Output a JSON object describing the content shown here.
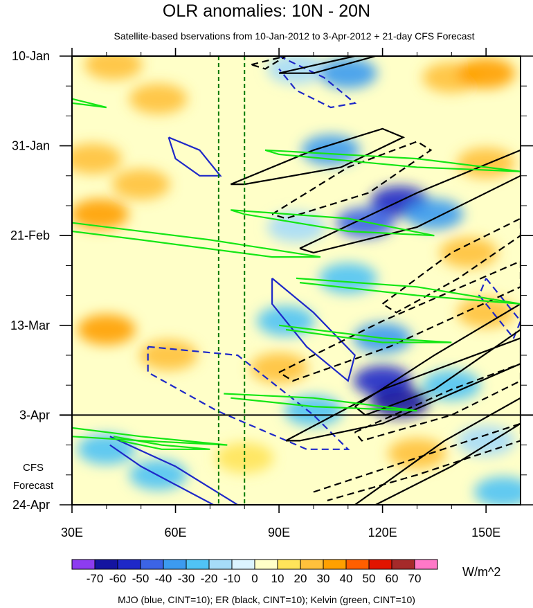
{
  "chart_data": {
    "type": "heatmap",
    "title": "OLR anomalies: 10N - 20N",
    "subtitle": "Satellite-based bservations from 10-Jan-2012 to 3-Apr-2012 + 21-day CFS Forecast",
    "footer": "MJO (blue, CINT=10); ER (black, CINT=10); Kelvin (green, CINT=10)",
    "units": "W/m^2",
    "forecast_label": [
      "CFS",
      "Forecast"
    ],
    "x_axis": {
      "range_deg_east": [
        30,
        160
      ],
      "ticks": [
        30,
        60,
        90,
        120,
        150
      ],
      "tick_labels": [
        "30E",
        "60E",
        "90E",
        "120E",
        "150E"
      ]
    },
    "y_axis": {
      "range_days_from_10_jan": [
        0,
        105
      ],
      "ticks": [
        0,
        21,
        42,
        63,
        84,
        105
      ],
      "tick_labels": [
        "10-Jan",
        "31-Jan",
        "21-Feb",
        "13-Mar",
        "3-Apr",
        "24-Apr"
      ],
      "observation_end_day": 84
    },
    "colorbar": {
      "levels": [
        -70,
        -60,
        -50,
        -40,
        -30,
        -20,
        -10,
        0,
        10,
        20,
        30,
        40,
        50,
        60,
        70
      ],
      "level_labels": [
        "-70",
        "-60",
        "-50",
        "-40",
        "-30",
        "-20",
        "-10",
        "0",
        "10",
        "20",
        "30",
        "40",
        "50",
        "60",
        "70"
      ],
      "colors": [
        "#8d3cf0",
        "#1414a0",
        "#1e28c8",
        "#3c64e6",
        "#3c9bf0",
        "#50c3f5",
        "#a6dcf8",
        "#dcf4ff",
        "#ffffc8",
        "#ffe45a",
        "#ffc13c",
        "#ffa000",
        "#ff5f00",
        "#e11400",
        "#a52a2a",
        "#ff78c8"
      ]
    },
    "reference_lines": [
      {
        "lon": 72.5,
        "style": "dashed",
        "color": "#007800"
      },
      {
        "lon": 80,
        "style": "dashed",
        "color": "#007800"
      }
    ],
    "anomaly_cells": [
      {
        "lon": 42,
        "day": 2,
        "level": 20
      },
      {
        "lon": 55,
        "day": 10,
        "level": 20
      },
      {
        "lon": 95,
        "day": 3,
        "level": -20
      },
      {
        "lon": 110,
        "day": 4,
        "level": -40
      },
      {
        "lon": 140,
        "day": 5,
        "level": 20
      },
      {
        "lon": 150,
        "day": 4,
        "level": 30
      },
      {
        "lon": 36,
        "day": 24,
        "level": 20
      },
      {
        "lon": 50,
        "day": 30,
        "level": 20
      },
      {
        "lon": 38,
        "day": 37,
        "level": 30
      },
      {
        "lon": 105,
        "day": 22,
        "level": -40
      },
      {
        "lon": 125,
        "day": 34,
        "level": -60
      },
      {
        "lon": 115,
        "day": 39,
        "level": -50
      },
      {
        "lon": 135,
        "day": 37,
        "level": -40
      },
      {
        "lon": 95,
        "day": 40,
        "level": -20
      },
      {
        "lon": 150,
        "day": 25,
        "level": 20
      },
      {
        "lon": 145,
        "day": 46,
        "level": 20
      },
      {
        "lon": 110,
        "day": 52,
        "level": -30
      },
      {
        "lon": 92,
        "day": 62,
        "level": -30
      },
      {
        "lon": 120,
        "day": 66,
        "level": -40
      },
      {
        "lon": 40,
        "day": 64,
        "level": 30
      },
      {
        "lon": 58,
        "day": 70,
        "level": 20
      },
      {
        "lon": 150,
        "day": 60,
        "level": 20
      },
      {
        "lon": 120,
        "day": 76,
        "level": -60
      },
      {
        "lon": 125,
        "day": 81,
        "level": -70
      },
      {
        "lon": 140,
        "day": 77,
        "level": -30
      },
      {
        "lon": 100,
        "day": 83,
        "level": -30
      },
      {
        "lon": 90,
        "day": 73,
        "level": 20
      },
      {
        "lon": 40,
        "day": 92,
        "level": -30
      },
      {
        "lon": 55,
        "day": 98,
        "level": -30
      },
      {
        "lon": 80,
        "day": 94,
        "level": 10
      },
      {
        "lon": 130,
        "day": 93,
        "level": 20
      },
      {
        "lon": 155,
        "day": 102,
        "level": -30
      },
      {
        "lon": 150,
        "day": 90,
        "level": -20
      }
    ],
    "contours": [
      {
        "wave": "MJO",
        "color": "#1e28c8",
        "sign": "positive",
        "points": [
          [
            58,
            19
          ],
          [
            67,
            22
          ],
          [
            73,
            28
          ],
          [
            67,
            28
          ],
          [
            60,
            24
          ],
          [
            58,
            19
          ]
        ]
      },
      {
        "wave": "MJO",
        "color": "#1e28c8",
        "sign": "negative",
        "points": [
          [
            90,
            0
          ],
          [
            103,
            5
          ],
          [
            112,
            11
          ],
          [
            105,
            12
          ],
          [
            95,
            8
          ],
          [
            90,
            3
          ]
        ]
      },
      {
        "wave": "MJO",
        "color": "#1e28c8",
        "sign": "positive",
        "points": [
          [
            88,
            52
          ],
          [
            100,
            60
          ],
          [
            112,
            70
          ],
          [
            110,
            76
          ],
          [
            98,
            68
          ],
          [
            88,
            58
          ],
          [
            88,
            52
          ]
        ]
      },
      {
        "wave": "MJO",
        "color": "#1e28c8",
        "sign": "negative",
        "points": [
          [
            52,
            68
          ],
          [
            78,
            70
          ],
          [
            100,
            84
          ],
          [
            110,
            92
          ],
          [
            98,
            92
          ],
          [
            72,
            83
          ],
          [
            52,
            74
          ],
          [
            52,
            68
          ]
        ]
      },
      {
        "wave": "MJO",
        "color": "#1e28c8",
        "sign": "positive",
        "points": [
          [
            41,
            89
          ],
          [
            60,
            96
          ],
          [
            78,
            105
          ],
          [
            71,
            105
          ],
          [
            50,
            96
          ],
          [
            41,
            91
          ]
        ]
      },
      {
        "wave": "MJO",
        "color": "#1e28c8",
        "sign": "negative",
        "points": [
          [
            150,
            52
          ],
          [
            160,
            62
          ],
          [
            158,
            66
          ],
          [
            148,
            56
          ],
          [
            150,
            52
          ]
        ]
      },
      {
        "wave": "ER",
        "color": "#000000",
        "sign": "positive",
        "points": [
          [
            90,
            4
          ],
          [
            112,
            0
          ],
          [
            118,
            0
          ],
          [
            100,
            4
          ],
          [
            90,
            4
          ]
        ]
      },
      {
        "wave": "ER",
        "color": "#000000",
        "sign": "positive",
        "points": [
          [
            76,
            30
          ],
          [
            100,
            22
          ],
          [
            120,
            17
          ],
          [
            126,
            19
          ],
          [
            108,
            26
          ],
          [
            80,
            30
          ],
          [
            76,
            30
          ]
        ]
      },
      {
        "wave": "ER",
        "color": "#000000",
        "sign": "positive",
        "points": [
          [
            96,
            45
          ],
          [
            130,
            32
          ],
          [
            160,
            22
          ],
          [
            160,
            28
          ],
          [
            130,
            40
          ],
          [
            100,
            46
          ],
          [
            96,
            45
          ]
        ]
      },
      {
        "wave": "ER",
        "color": "#000000",
        "sign": "positive",
        "points": [
          [
            112,
            82
          ],
          [
            135,
            70
          ],
          [
            160,
            58
          ],
          [
            160,
            64
          ],
          [
            135,
            78
          ],
          [
            115,
            84
          ],
          [
            112,
            82
          ]
        ]
      },
      {
        "wave": "ER",
        "color": "#000000",
        "sign": "positive",
        "points": [
          [
            92,
            90
          ],
          [
            120,
            78
          ],
          [
            160,
            66
          ],
          [
            160,
            72
          ],
          [
            120,
            86
          ],
          [
            96,
            90
          ],
          [
            92,
            90
          ]
        ]
      },
      {
        "wave": "ER",
        "color": "#000000",
        "sign": "positive",
        "points": [
          [
            112,
            105
          ],
          [
            138,
            90
          ],
          [
            160,
            80
          ],
          [
            160,
            86
          ],
          [
            140,
            96
          ],
          [
            118,
            105
          ]
        ]
      },
      {
        "wave": "ER",
        "color": "#000000",
        "sign": "negative",
        "points": [
          [
            82,
            2
          ],
          [
            92,
            0
          ],
          [
            86,
            3
          ],
          [
            82,
            2
          ]
        ]
      },
      {
        "wave": "ER",
        "color": "#000000",
        "sign": "negative",
        "points": [
          [
            88,
            37
          ],
          [
            110,
            26
          ],
          [
            130,
            20
          ],
          [
            134,
            22
          ],
          [
            116,
            32
          ],
          [
            92,
            38
          ],
          [
            88,
            37
          ]
        ]
      },
      {
        "wave": "ER",
        "color": "#000000",
        "sign": "negative",
        "points": [
          [
            120,
            58
          ],
          [
            140,
            46
          ],
          [
            160,
            38
          ],
          [
            160,
            42
          ],
          [
            142,
            52
          ],
          [
            124,
            60
          ],
          [
            120,
            58
          ]
        ]
      },
      {
        "wave": "ER",
        "color": "#000000",
        "sign": "negative",
        "points": [
          [
            90,
            74
          ],
          [
            120,
            62
          ],
          [
            160,
            48
          ],
          [
            160,
            54
          ],
          [
            122,
            68
          ],
          [
            94,
            76
          ],
          [
            90,
            74
          ]
        ]
      },
      {
        "wave": "ER",
        "color": "#000000",
        "sign": "negative",
        "points": [
          [
            112,
            88
          ],
          [
            140,
            78
          ],
          [
            160,
            72
          ],
          [
            160,
            76
          ],
          [
            140,
            84
          ],
          [
            114,
            90
          ],
          [
            112,
            88
          ]
        ]
      },
      {
        "wave": "ER",
        "color": "#000000",
        "sign": "negative",
        "points": [
          [
            100,
            102
          ],
          [
            130,
            94
          ],
          [
            160,
            86
          ],
          [
            160,
            90
          ],
          [
            130,
            98
          ],
          [
            104,
            104
          ]
        ]
      },
      {
        "wave": "Kelvin",
        "color": "#14e614",
        "sign": "positive",
        "points": [
          [
            30,
            10
          ],
          [
            40,
            12
          ],
          [
            30,
            11
          ]
        ]
      },
      {
        "wave": "Kelvin",
        "color": "#14e614",
        "sign": "positive",
        "points": [
          [
            30,
            39
          ],
          [
            70,
            43
          ],
          [
            102,
            47
          ],
          [
            88,
            47
          ],
          [
            50,
            43
          ],
          [
            30,
            41
          ]
        ]
      },
      {
        "wave": "Kelvin",
        "color": "#14e614",
        "sign": "positive",
        "points": [
          [
            86,
            22
          ],
          [
            130,
            24
          ],
          [
            160,
            27
          ],
          [
            130,
            26
          ],
          [
            90,
            23
          ],
          [
            86,
            22
          ]
        ]
      },
      {
        "wave": "Kelvin",
        "color": "#14e614",
        "sign": "positive",
        "points": [
          [
            76,
            36
          ],
          [
            110,
            38
          ],
          [
            135,
            42
          ],
          [
            110,
            41
          ],
          [
            80,
            37
          ],
          [
            76,
            36
          ]
        ]
      },
      {
        "wave": "Kelvin",
        "color": "#14e614",
        "sign": "positive",
        "points": [
          [
            95,
            52
          ],
          [
            130,
            54
          ],
          [
            160,
            58
          ],
          [
            130,
            56
          ],
          [
            96,
            53
          ]
        ]
      },
      {
        "wave": "Kelvin",
        "color": "#14e614",
        "sign": "positive",
        "points": [
          [
            90,
            63
          ],
          [
            120,
            66
          ],
          [
            140,
            67
          ],
          [
            120,
            67
          ],
          [
            92,
            64
          ]
        ]
      },
      {
        "wave": "Kelvin",
        "color": "#14e614",
        "sign": "positive",
        "points": [
          [
            74,
            79
          ],
          [
            100,
            80
          ],
          [
            130,
            83
          ],
          [
            100,
            82
          ],
          [
            76,
            80
          ]
        ]
      },
      {
        "wave": "Kelvin",
        "color": "#14e614",
        "sign": "positive",
        "points": [
          [
            30,
            87
          ],
          [
            50,
            89
          ],
          [
            75,
            91
          ],
          [
            50,
            90
          ],
          [
            30,
            89
          ]
        ]
      },
      {
        "wave": "Kelvin",
        "color": "#14e614",
        "sign": "positive",
        "points": [
          [
            42,
            89
          ],
          [
            56,
            91
          ],
          [
            70,
            92
          ],
          [
            56,
            92
          ],
          [
            44,
            90
          ]
        ]
      }
    ]
  }
}
